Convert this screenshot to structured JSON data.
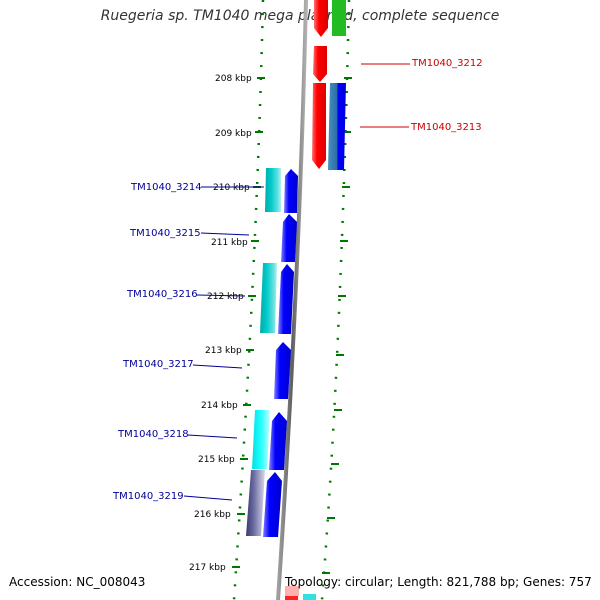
{
  "title": "Ruegeria sp. TM1040 mega plasmid, complete sequence",
  "accession": "Accession: NC_008043",
  "summary": "Topology: circular; Length: 821,788 bp; Genes: 757",
  "colors": {
    "forward_gene": "#ff0000",
    "reverse_gene": "#0000ff",
    "cyan_gene": "#00cccc",
    "green_gene": "#00bb00",
    "backbone": "#808080",
    "tick_dots": "#007700",
    "forward_label": "#cc0000",
    "reverse_label": "#000099"
  },
  "ticks": [
    "208 kbp",
    "209 kbp",
    "210 kbp",
    "211 kbp",
    "212 kbp",
    "213 kbp",
    "214 kbp",
    "215 kbp",
    "216 kbp",
    "217 kbp"
  ],
  "genes": [
    {
      "id": "TM1040_3212",
      "strand": "forward"
    },
    {
      "id": "TM1040_3213",
      "strand": "forward"
    },
    {
      "id": "TM1040_3214",
      "strand": "reverse"
    },
    {
      "id": "TM1040_3215",
      "strand": "reverse"
    },
    {
      "id": "TM1040_3216",
      "strand": "reverse"
    },
    {
      "id": "TM1040_3217",
      "strand": "reverse"
    },
    {
      "id": "TM1040_3218",
      "strand": "reverse"
    },
    {
      "id": "TM1040_3219",
      "strand": "reverse"
    }
  ]
}
